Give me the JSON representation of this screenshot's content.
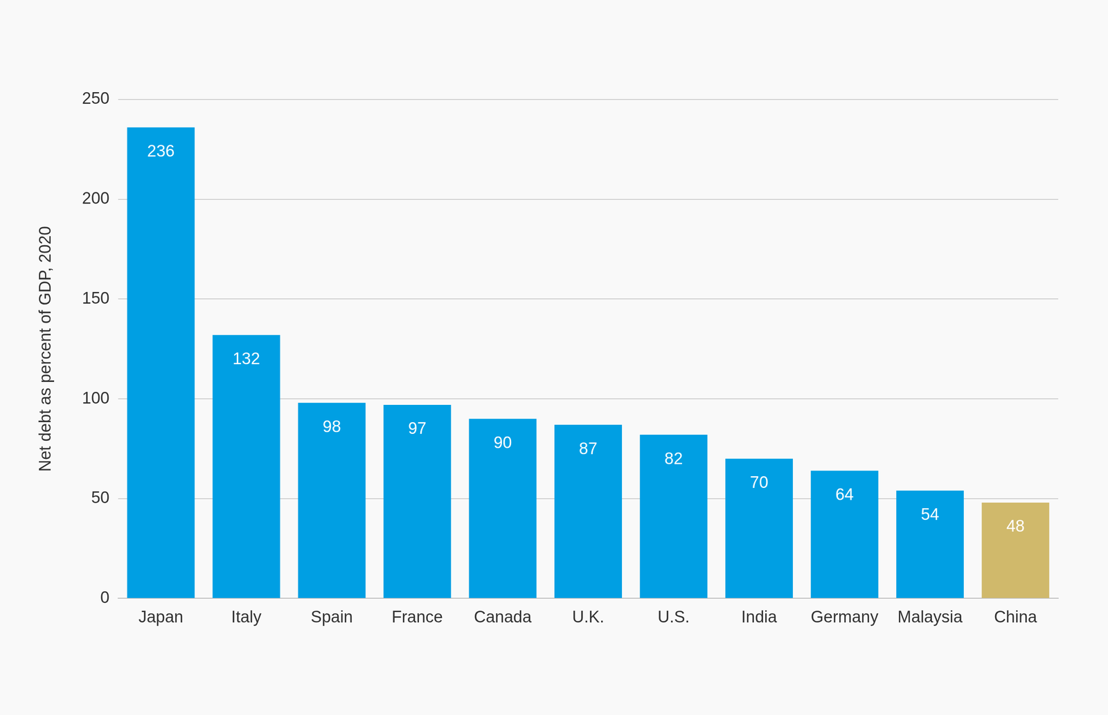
{
  "chart_data": {
    "type": "bar",
    "y_label": "Net debt as percent of GDP, 2020",
    "categories": [
      "Japan",
      "Italy",
      "Spain",
      "France",
      "Canada",
      "U.K.",
      "U.S.",
      "India",
      "Germany",
      "Malaysia",
      "China"
    ],
    "values": [
      236,
      132,
      98,
      97,
      90,
      87,
      82,
      70,
      64,
      54,
      48
    ],
    "colors": [
      "#009fe3",
      "#009fe3",
      "#009fe3",
      "#009fe3",
      "#009fe3",
      "#009fe3",
      "#009fe3",
      "#009fe3",
      "#009fe3",
      "#009fe3",
      "#d0b96b"
    ],
    "ylim": [
      0,
      250
    ],
    "yticks": [
      0,
      50,
      100,
      150,
      200,
      250
    ],
    "grid": true,
    "data_labels": true
  }
}
